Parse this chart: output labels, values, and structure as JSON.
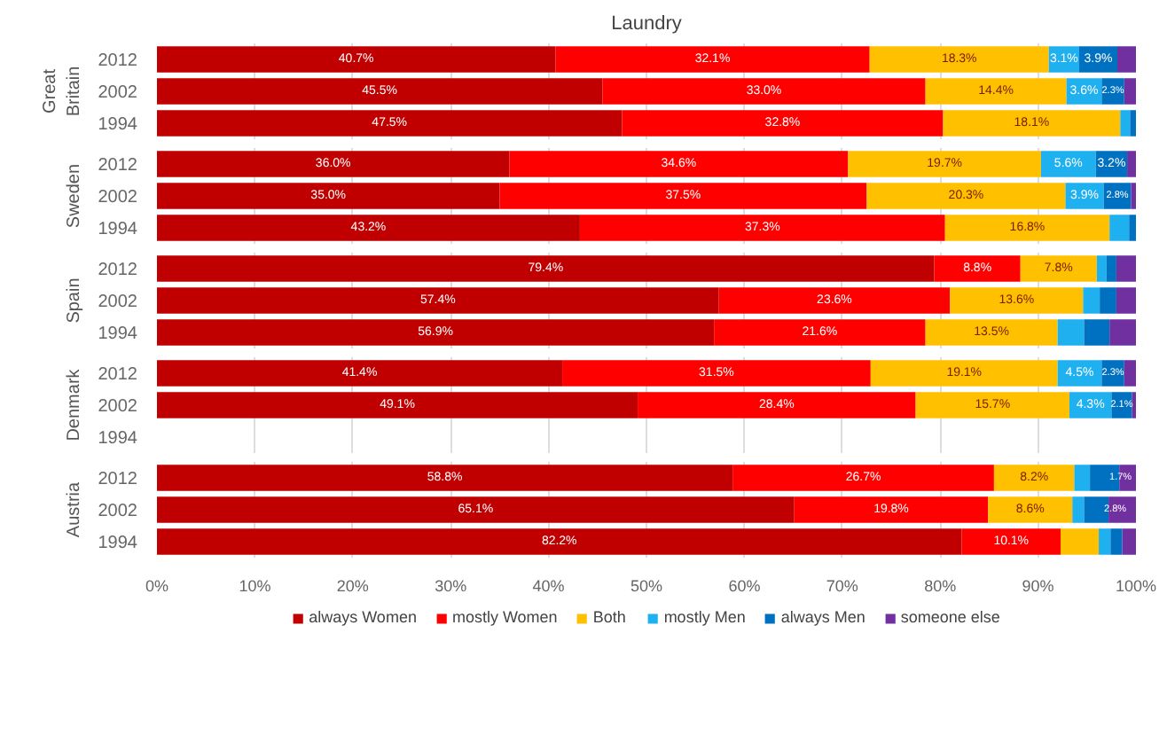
{
  "chart_data": [
    {
      "type": "bar",
      "orientation": "horizontal",
      "stacked": true,
      "title": "Laundry",
      "ylabel": "Great Britain",
      "categories": [
        "2012",
        "2002",
        "1994"
      ],
      "xlim": [
        0,
        100
      ],
      "xticks": [
        0,
        10,
        20,
        30,
        40,
        50,
        60,
        70,
        80,
        90,
        100
      ],
      "tick_labels": "y",
      "grid": "x",
      "series": [
        {
          "color": "#c00000",
          "values": [
            40.7,
            45.5,
            47.5
          ],
          "value_labels": [
            "40.7%",
            "45.5%",
            "47.5%"
          ]
        },
        {
          "color": "#ff0000",
          "values": [
            32.1,
            33.0,
            32.8
          ],
          "value_labels": [
            "32.1%",
            "33.0%",
            "32.8%"
          ]
        },
        {
          "color": "#ffc000",
          "values": [
            18.3,
            14.4,
            18.1
          ],
          "value_labels": [
            "18.3%",
            "14.4%",
            "18.1%"
          ]
        },
        {
          "color": "#1fb0f0",
          "values": [
            3.1,
            3.6,
            1.0
          ],
          "value_labels": [
            "3.1%",
            "3.6%",
            null
          ]
        },
        {
          "color": "#0070c0",
          "values": [
            3.9,
            2.3,
            0.6
          ],
          "value_labels": [
            "3.9%",
            "2.3%",
            null
          ]
        },
        {
          "color": "#7030a0",
          "values": [
            1.9,
            1.2,
            0
          ],
          "value_labels": [
            null,
            null,
            null
          ]
        }
      ]
    },
    {
      "type": "bar",
      "orientation": "horizontal",
      "stacked": true,
      "ylabel": "Sweden",
      "categories": [
        "2012",
        "2002",
        "1994"
      ],
      "xlim": [
        0,
        100
      ],
      "xticks": [
        0,
        10,
        20,
        30,
        40,
        50,
        60,
        70,
        80,
        90,
        100
      ],
      "tick_labels": "y",
      "grid": "x",
      "series": [
        {
          "color": "#c00000",
          "values": [
            36.0,
            35.0,
            43.2
          ],
          "value_labels": [
            "36.0%",
            "35.0%",
            "43.2%"
          ]
        },
        {
          "color": "#ff0000",
          "values": [
            34.6,
            37.5,
            37.3
          ],
          "value_labels": [
            "34.6%",
            "37.5%",
            "37.3%"
          ]
        },
        {
          "color": "#ffc000",
          "values": [
            19.7,
            20.3,
            16.8
          ],
          "value_labels": [
            "19.7%",
            "20.3%",
            "16.8%"
          ]
        },
        {
          "color": "#1fb0f0",
          "values": [
            5.6,
            3.9,
            2.0
          ],
          "value_labels": [
            "5.6%",
            "3.9%",
            null
          ]
        },
        {
          "color": "#0070c0",
          "values": [
            3.2,
            2.8,
            0.7
          ],
          "value_labels": [
            "3.2%",
            "2.8%",
            null
          ]
        },
        {
          "color": "#7030a0",
          "values": [
            0.9,
            0.5,
            0
          ],
          "value_labels": [
            null,
            null,
            null
          ]
        }
      ]
    },
    {
      "type": "bar",
      "orientation": "horizontal",
      "stacked": true,
      "ylabel": "Spain",
      "categories": [
        "2012",
        "2002",
        "1994"
      ],
      "xlim": [
        0,
        100
      ],
      "xticks": [
        0,
        10,
        20,
        30,
        40,
        50,
        60,
        70,
        80,
        90,
        100
      ],
      "tick_labels": "y",
      "grid": "x",
      "series": [
        {
          "color": "#c00000",
          "values": [
            79.4,
            57.4,
            56.9
          ],
          "value_labels": [
            "79.4%",
            "57.4%",
            "56.9%"
          ]
        },
        {
          "color": "#ff0000",
          "values": [
            8.8,
            23.6,
            21.6
          ],
          "value_labels": [
            "8.8%",
            "23.6%",
            "21.6%"
          ]
        },
        {
          "color": "#ffc000",
          "values": [
            7.8,
            13.6,
            13.5
          ],
          "value_labels": [
            "7.8%",
            "13.6%",
            "13.5%"
          ]
        },
        {
          "color": "#1fb0f0",
          "values": [
            1.0,
            1.7,
            2.7
          ],
          "value_labels": [
            null,
            null,
            null
          ]
        },
        {
          "color": "#0070c0",
          "values": [
            1.0,
            1.7,
            2.6
          ],
          "value_labels": [
            null,
            null,
            null
          ]
        },
        {
          "color": "#7030a0",
          "values": [
            2.0,
            2.0,
            2.7
          ],
          "value_labels": [
            null,
            null,
            null
          ]
        }
      ]
    },
    {
      "type": "bar",
      "orientation": "horizontal",
      "stacked": true,
      "ylabel": "Denmark",
      "categories": [
        "2012",
        "2002",
        "1994"
      ],
      "xlim": [
        0,
        100
      ],
      "xticks": [
        0,
        10,
        20,
        30,
        40,
        50,
        60,
        70,
        80,
        90,
        100
      ],
      "tick_labels": "y",
      "grid": "x",
      "series": [
        {
          "color": "#c00000",
          "values": [
            41.4,
            49.1,
            null
          ],
          "value_labels": [
            "41.4%",
            "49.1%",
            null
          ]
        },
        {
          "color": "#ff0000",
          "values": [
            31.5,
            28.4,
            null
          ],
          "value_labels": [
            "31.5%",
            "28.4%",
            null
          ]
        },
        {
          "color": "#ffc000",
          "values": [
            19.1,
            15.7,
            null
          ],
          "value_labels": [
            "19.1%",
            "15.7%",
            null
          ]
        },
        {
          "color": "#1fb0f0",
          "values": [
            4.5,
            4.3,
            null
          ],
          "value_labels": [
            "4.5%",
            "4.3%",
            null
          ]
        },
        {
          "color": "#0070c0",
          "values": [
            2.3,
            2.1,
            null
          ],
          "value_labels": [
            "2.3%",
            "2.1%",
            null
          ]
        },
        {
          "color": "#7030a0",
          "values": [
            1.2,
            0.4,
            null
          ],
          "value_labels": [
            null,
            null,
            null
          ]
        }
      ]
    },
    {
      "type": "bar",
      "orientation": "horizontal",
      "stacked": true,
      "ylabel": "Austria",
      "categories": [
        "2012",
        "2002",
        "1994"
      ],
      "xlim": [
        0,
        100
      ],
      "xticks": [
        {
          "value": 0,
          "label": "0%"
        },
        {
          "value": 10,
          "label": "10%"
        },
        {
          "value": 20,
          "label": "20%"
        },
        {
          "value": 30,
          "label": "30%"
        },
        {
          "value": 40,
          "label": "40%"
        },
        {
          "value": 50,
          "label": "50%"
        },
        {
          "value": 60,
          "label": "60%"
        },
        {
          "value": 70,
          "label": "70%"
        },
        {
          "value": 80,
          "label": "80%"
        },
        {
          "value": 90,
          "label": "90%"
        },
        {
          "value": 100,
          "label": "100%"
        }
      ],
      "grid": "x",
      "legend": "bottom",
      "series": [
        {
          "name": "always Women",
          "color": "#c00000",
          "values": [
            58.8,
            65.1,
            82.2
          ],
          "value_labels": [
            "58.8%",
            "65.1%",
            "82.2%"
          ]
        },
        {
          "name": "mostly Women",
          "color": "#ff0000",
          "values": [
            26.7,
            19.8,
            10.1
          ],
          "value_labels": [
            "26.7%",
            "19.8%",
            "10.1%"
          ]
        },
        {
          "name": "Both",
          "color": "#ffc000",
          "values": [
            8.2,
            8.6,
            3.9
          ],
          "value_labels": [
            "8.2%",
            "8.6%",
            null
          ]
        },
        {
          "name": "mostly Men",
          "color": "#1fb0f0",
          "values": [
            1.6,
            1.2,
            1.2
          ],
          "value_labels": [
            null,
            null,
            null
          ]
        },
        {
          "name": "always Men",
          "color": "#0070c0",
          "values": [
            3.0,
            2.5,
            1.2
          ],
          "value_labels": [
            null,
            null,
            null
          ]
        },
        {
          "name": "someone else",
          "color": "#7030a0",
          "values": [
            1.7,
            2.8,
            1.4
          ],
          "value_labels": [
            "1.7%",
            "2.8%",
            null
          ]
        }
      ]
    }
  ]
}
